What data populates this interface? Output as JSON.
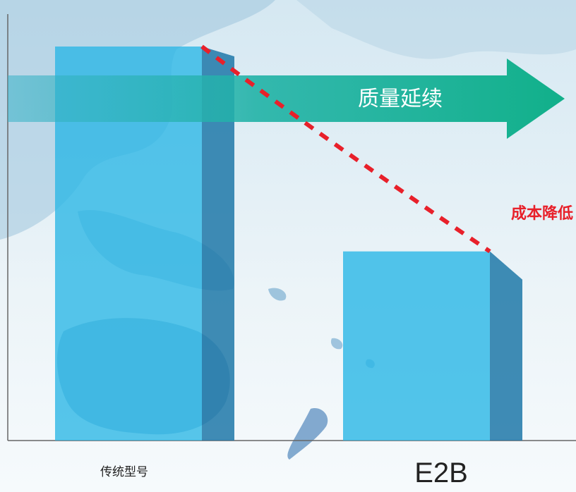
{
  "chart_data": {
    "type": "bar",
    "categories": [
      "传统型号",
      "E2B"
    ],
    "values": [
      100,
      48
    ],
    "ylim": [
      0,
      100
    ],
    "grid": false,
    "annotations": {
      "arrow_label": "质量延续",
      "trend_label": "成本降低"
    }
  },
  "colors": {
    "bar_front": "#29b6e6",
    "bar_side": "#1f78a8",
    "arrow": "#18b38e",
    "trend_line": "#e8202a",
    "axis": "#666666",
    "map_land": "#6fa8cf",
    "map_sea": "#e6f1f7"
  }
}
